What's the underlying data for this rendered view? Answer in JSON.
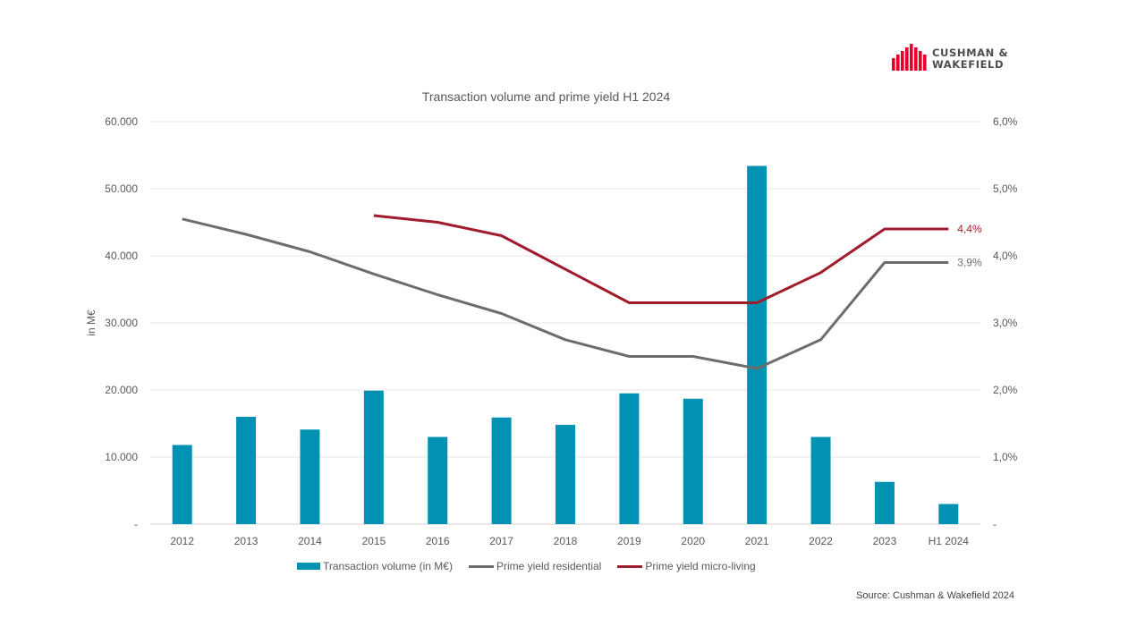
{
  "brand": {
    "line1": "CUSHMAN &",
    "line2": "WAKEFIELD",
    "logo_color": "#e4002b"
  },
  "source": "Source: Cushman & Wakefield 2024",
  "colors": {
    "bars": "#0091b3",
    "residential": "#6d6d6d",
    "micro_living": "#a01c2c",
    "grid": "#e6e6e6",
    "axis_text": "#595959"
  },
  "chart_data": {
    "type": "bar",
    "title": "Transaction volume and prime yield H1 2024",
    "ylabel": "in M€",
    "categories": [
      "2012",
      "2013",
      "2014",
      "2015",
      "2016",
      "2017",
      "2018",
      "2019",
      "2020",
      "2021",
      "2022",
      "2023",
      "H1 2024"
    ],
    "ylim": [
      0,
      60000
    ],
    "y2lim": [
      0,
      6.0
    ],
    "y_ticks": [
      "-",
      "10.000",
      "20.000",
      "30.000",
      "40.000",
      "50.000",
      "60.000"
    ],
    "y2_ticks": [
      "-",
      "1,0%",
      "2,0%",
      "3,0%",
      "4,0%",
      "5,0%",
      "6,0%"
    ],
    "grid": true,
    "legend_position": "bottom",
    "series": [
      {
        "name": "Transaction volume (in M€)",
        "type": "bar",
        "axis": "left",
        "values": [
          11800,
          16000,
          14100,
          19900,
          13000,
          15900,
          14800,
          19500,
          18700,
          53400,
          13000,
          6300,
          3000
        ]
      },
      {
        "name": "Prime yield residential",
        "type": "line",
        "axis": "right",
        "values": [
          4.55,
          4.32,
          4.06,
          3.73,
          3.42,
          3.14,
          2.75,
          2.5,
          2.5,
          2.32,
          2.75,
          3.9,
          3.9
        ],
        "end_label": "3,9%"
      },
      {
        "name": "Prime yield micro-living",
        "type": "line",
        "axis": "right",
        "values": [
          null,
          null,
          null,
          4.6,
          4.5,
          4.3,
          3.8,
          3.3,
          3.3,
          3.3,
          3.75,
          4.4,
          4.4
        ],
        "end_label": "4,4%"
      }
    ]
  }
}
